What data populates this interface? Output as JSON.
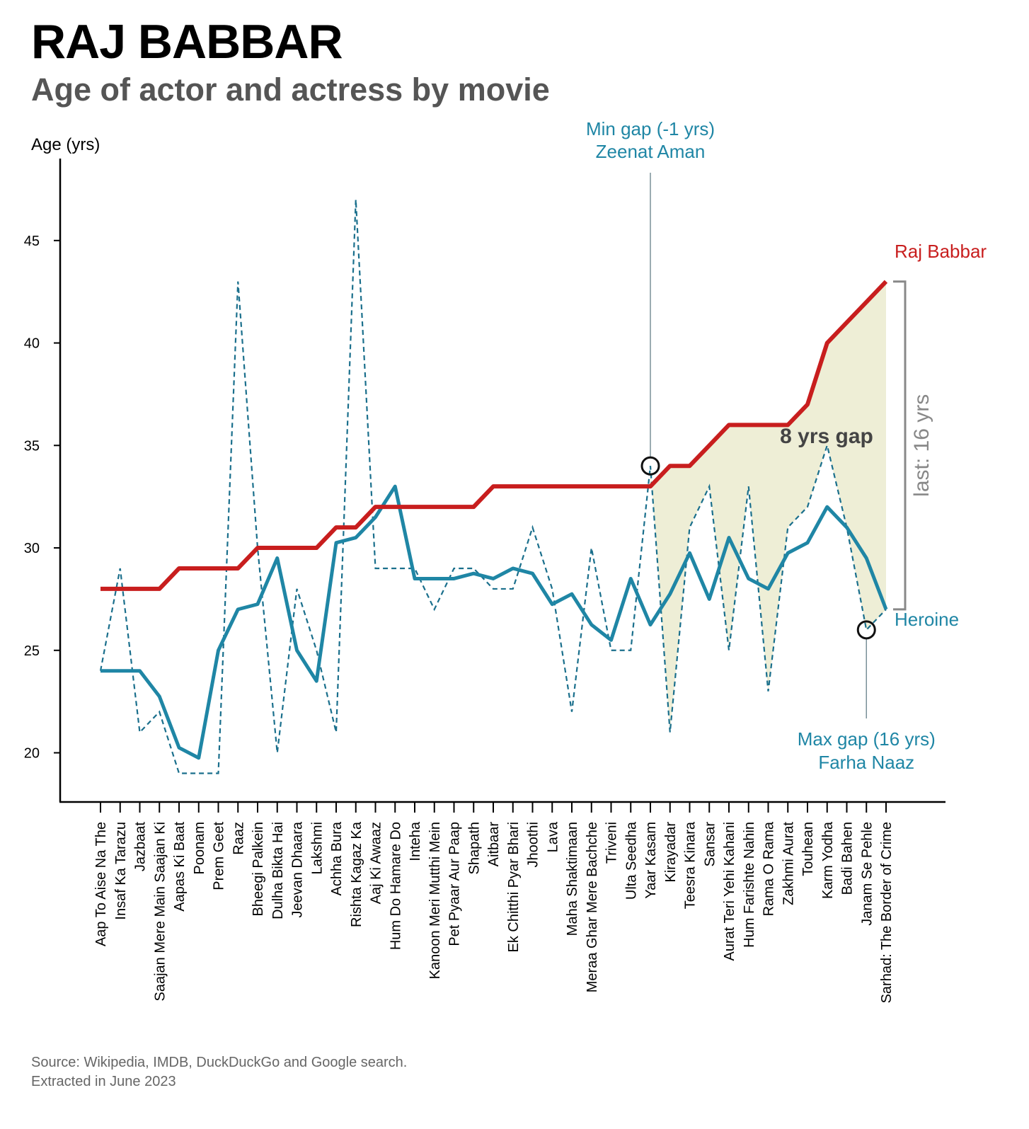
{
  "title": "RAJ BABBAR",
  "subtitle": "Age of actor and actress by movie",
  "source_line1": "Source: Wikipedia, IMDB, DuckDuckGo and Google search.",
  "source_line2": "Extracted in June 2023",
  "colors": {
    "actor": "#c81e1e",
    "heroine": "#1f86a5",
    "heroine_dashed": "#1a6f8c",
    "gap_fill": "#e8e8c8",
    "bracket": "#888888",
    "annotation_line": "#7a9099"
  },
  "chart_data": {
    "type": "line",
    "ylabel": "Age (yrs)",
    "xlabel": "",
    "yticks": [
      20,
      25,
      30,
      35,
      40,
      45
    ],
    "ylim": [
      17.6,
      49
    ],
    "grid": false,
    "categories": [
      "Aap To Aise Na The",
      "Insaf Ka Tarazu",
      "Jazbaat",
      "Saajan Mere Main Saajan Ki",
      "Aapas Ki Baat",
      "Poonam",
      "Prem Geet",
      "Raaz",
      "Bheegi Palkein",
      "Dulha Bikta Hai",
      "Jeevan Dhaara",
      "Lakshmi",
      "Achha Bura",
      "Rishta Kagaz Ka",
      "Aaj Ki Awaaz",
      "Hum Do Hamare Do",
      "Inteha",
      "Kanoon Meri Mutthi Mein",
      "Pet Pyaar Aur Paap",
      "Shapath",
      "Aitbaar",
      "Ek Chitthi Pyar Bhari",
      "Jhoothi",
      "Lava",
      "Maha Shaktimaan",
      "Meraa Ghar Mere Bachche",
      "Triveni",
      "Ulta Seedha",
      "Yaar Kasam",
      "Kirayadar",
      "Teesra Kinara",
      "Sansar",
      "Aurat Teri Yehi Kahani",
      "Hum Farishte Nahin",
      "Rama O Rama",
      "Zakhmi Aurat",
      "Touhean",
      "Karm Yodha",
      "Badi Bahen",
      "Janam Se Pehle",
      "Sarhad: The Border of Crime"
    ],
    "series": [
      {
        "name": "Raj Babbar",
        "style": "solid-thick",
        "values": [
          28,
          28,
          28,
          28,
          29,
          29,
          29,
          29,
          30,
          30,
          30,
          30,
          31,
          31,
          32,
          32,
          32,
          32,
          32,
          32,
          33,
          33,
          33,
          33,
          33,
          33,
          33,
          33,
          33,
          34,
          34,
          35,
          36,
          36,
          36,
          36,
          37,
          40,
          41,
          42,
          43
        ]
      },
      {
        "name": "Heroine",
        "style": "solid",
        "values": [
          24,
          24,
          24,
          22.75,
          20.25,
          19.75,
          25,
          27,
          27.25,
          29.5,
          25,
          23.5,
          30.25,
          30.5,
          31.5,
          33,
          28.5,
          28.5,
          28.5,
          28.75,
          28.5,
          29,
          28.75,
          27.25,
          27.75,
          26.25,
          25.5,
          28.5,
          26.25,
          27.75,
          29.75,
          27.5,
          30.5,
          28.5,
          28,
          29.75,
          30.25,
          32,
          31,
          29.5,
          27
        ]
      },
      {
        "style": "dashed",
        "values": [
          24,
          29,
          21,
          22,
          19,
          19,
          19,
          43,
          30,
          20,
          28,
          25,
          21,
          47,
          29,
          29,
          29,
          27,
          29,
          29,
          28,
          28,
          31,
          28,
          22,
          30,
          25,
          25,
          34,
          21,
          31,
          33,
          25,
          33,
          23,
          31,
          32,
          35,
          31,
          26,
          27
        ]
      }
    ],
    "annotations": {
      "min_gap_line1": "Min gap (-1 yrs)",
      "min_gap_line2": "Zeenat Aman",
      "max_gap_line1": "Max gap (16 yrs)",
      "max_gap_line2": "Farha Naaz",
      "mid_gap_label": "8 yrs gap",
      "last_gap_label": "last: 16 yrs",
      "actor_label": "Raj Babbar",
      "heroine_label": "Heroine",
      "min_gap_index": 28,
      "min_gap_age": 34,
      "max_gap_index": 39,
      "max_gap_age": 26,
      "shaded_from_index": 28
    }
  }
}
